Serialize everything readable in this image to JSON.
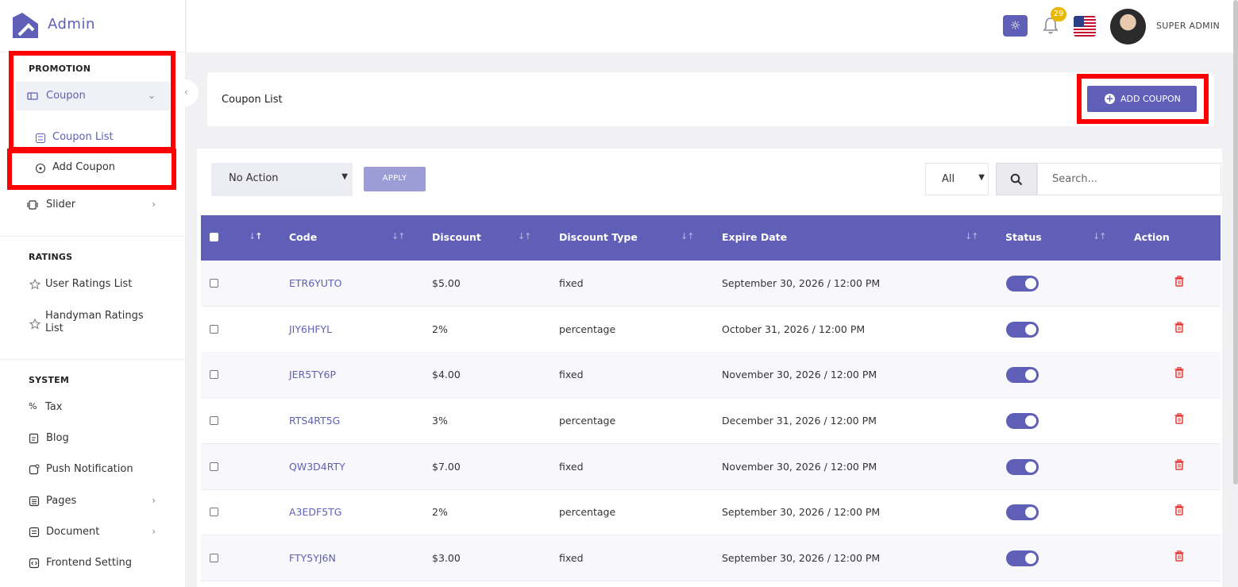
{
  "app": {
    "name": "Admin"
  },
  "sidebar": {
    "sections": [
      {
        "heading": "PROMOTION"
      },
      {
        "heading": "RATINGS"
      },
      {
        "heading": "SYSTEM"
      }
    ],
    "promotion": {
      "coupon": "Coupon",
      "coupon_list": "Coupon List",
      "add_coupon": "Add Coupon",
      "slider": "Slider"
    },
    "ratings": {
      "user_ratings": "User Ratings List",
      "handyman_ratings": "Handyman Ratings List"
    },
    "system": {
      "tax": "Tax",
      "blog": "Blog",
      "push": "Push Notification",
      "pages": "Pages",
      "document": "Document",
      "frontend": "Frontend Setting"
    }
  },
  "header": {
    "notification_count": "29",
    "user_name": "SUPER ADMIN",
    "theme_icon": "sun-icon",
    "notification_icon": "bell-icon",
    "language_icon": "us-flag-icon"
  },
  "page": {
    "title": "Coupon List",
    "add_button": "ADD COUPON"
  },
  "toolbar": {
    "bulk_action": "No Action",
    "apply_label": "APPLY",
    "filter_value": "All",
    "search_placeholder": "Search..."
  },
  "table": {
    "columns": [
      "Code",
      "Discount",
      "Discount Type",
      "Expire Date",
      "Status",
      "Action"
    ],
    "rows": [
      {
        "code": "ETR6YUTO",
        "discount": "$5.00",
        "type": "fixed",
        "expire": "September 30, 2026 / 12:00 PM",
        "status": true
      },
      {
        "code": "JIY6HFYL",
        "discount": "2%",
        "type": "percentage",
        "expire": "October 31, 2026 / 12:00 PM",
        "status": true
      },
      {
        "code": "JER5TY6P",
        "discount": "$4.00",
        "type": "fixed",
        "expire": "November 30, 2026 / 12:00 PM",
        "status": true
      },
      {
        "code": "RTS4RT5G",
        "discount": "3%",
        "type": "percentage",
        "expire": "December 31, 2026 / 12:00 PM",
        "status": true
      },
      {
        "code": "QW3D4RTY",
        "discount": "$7.00",
        "type": "fixed",
        "expire": "November 30, 2026 / 12:00 PM",
        "status": true
      },
      {
        "code": "A3EDF5TG",
        "discount": "2%",
        "type": "percentage",
        "expire": "September 30, 2026 / 12:00 PM",
        "status": true
      },
      {
        "code": "FTY5YJ6N",
        "discount": "$3.00",
        "type": "fixed",
        "expire": "September 30, 2026 / 12:00 PM",
        "status": true
      }
    ]
  },
  "colors": {
    "accent": "#5f5fb7",
    "highlight_box": "#ff0000",
    "badge": "#e8b800",
    "delete": "#e53935"
  }
}
